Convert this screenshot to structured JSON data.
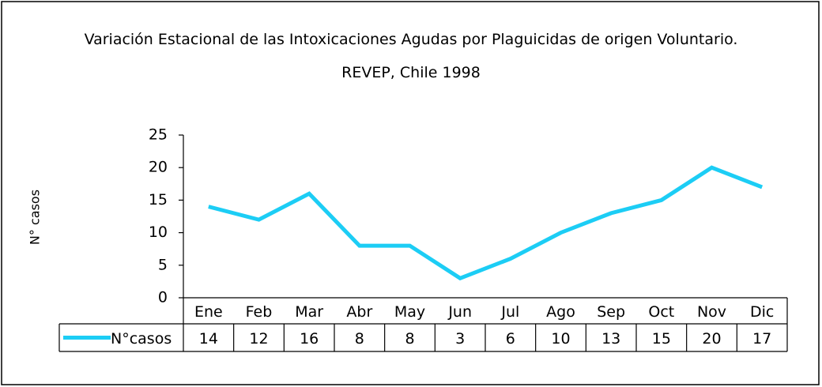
{
  "chart_data": {
    "type": "line",
    "title": "Variación Estacional de las Intoxicaciones Agudas por Plaguicidas de origen Voluntario.",
    "subtitle": "REVEP, Chile 1998",
    "y_label": "N° casos",
    "categories": [
      "Ene",
      "Feb",
      "Mar",
      "Abr",
      "May",
      "Jun",
      "Jul",
      "Ago",
      "Sep",
      "Oct",
      "Nov",
      "Dic"
    ],
    "series": [
      {
        "name": "N°casos",
        "color": "#1ccdf5",
        "values": [
          14,
          12,
          16,
          8,
          8,
          3,
          6,
          10,
          13,
          15,
          20,
          17
        ]
      }
    ],
    "ylim": [
      0,
      25
    ],
    "yticks": [
      0,
      5,
      10,
      15,
      20,
      25
    ],
    "grid": false,
    "legend": "table"
  }
}
